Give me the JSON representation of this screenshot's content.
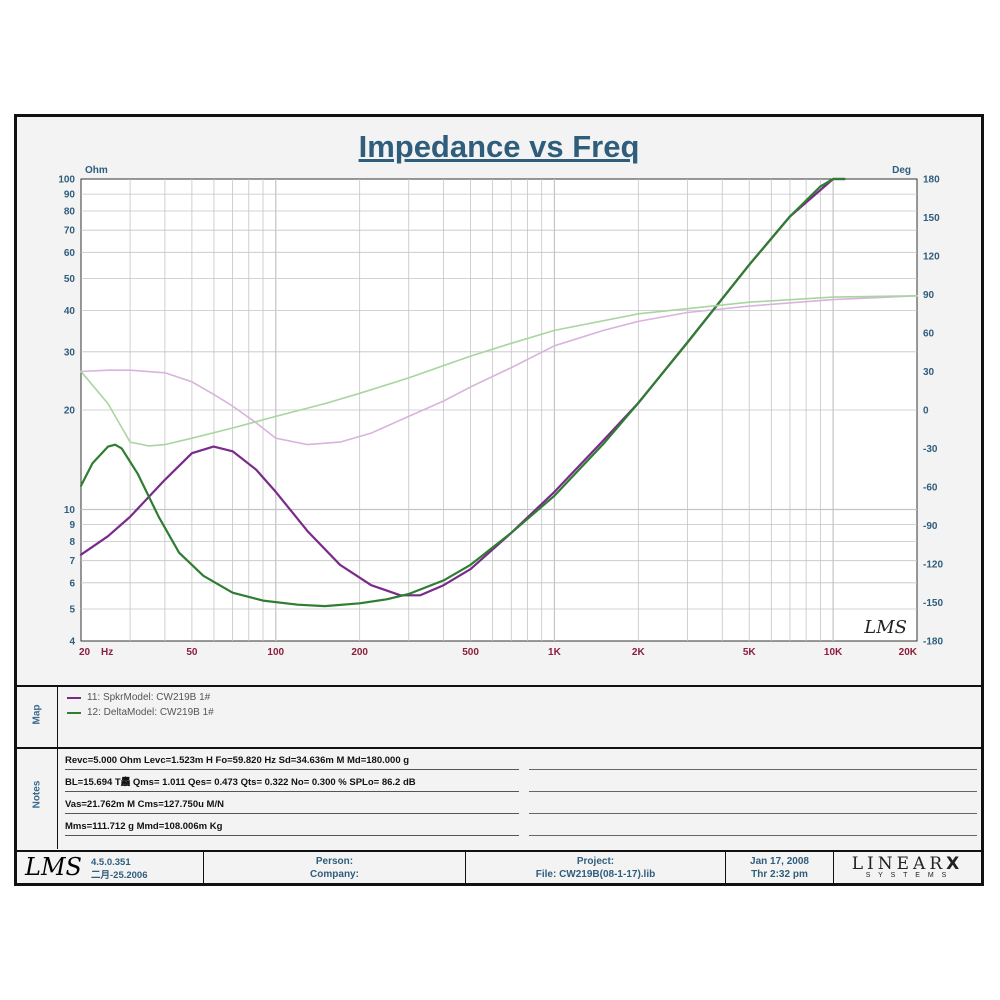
{
  "title": "Impedance vs Freq",
  "chart_data": {
    "type": "line",
    "title": "Impedance vs Freq",
    "xscale": "log",
    "yscale_left": "log",
    "xlim": [
      20,
      20000
    ],
    "ylim_left": [
      4,
      100
    ],
    "ylim_right": [
      -180,
      180
    ],
    "left_unit": "Ohm",
    "right_unit": "Deg",
    "x_ticks": [
      {
        "v": 20,
        "label": "20"
      },
      {
        "v": 50,
        "label": "50"
      },
      {
        "v": 100,
        "label": "100"
      },
      {
        "v": 200,
        "label": "200"
      },
      {
        "v": 500,
        "label": "500"
      },
      {
        "v": 1000,
        "label": "1K"
      },
      {
        "v": 2000,
        "label": "2K"
      },
      {
        "v": 5000,
        "label": "5K"
      },
      {
        "v": 10000,
        "label": "10K"
      },
      {
        "v": 20000,
        "label": "20K"
      }
    ],
    "x_unit_label": "Hz",
    "y_left_ticks": [
      4,
      5,
      6,
      7,
      8,
      9,
      10,
      20,
      30,
      40,
      50,
      60,
      70,
      80,
      90,
      100
    ],
    "y_right_ticks": [
      -180,
      -150,
      -120,
      -90,
      -60,
      -30,
      0,
      30,
      60,
      90,
      120,
      150,
      180
    ],
    "grid": true,
    "series": [
      {
        "name": "11: SpkrModel: CW219B  1#",
        "kind": "impedance",
        "axis": "left",
        "color": "#7a2a8a",
        "x": [
          20,
          25,
          30,
          40,
          50,
          59.82,
          70,
          85,
          100,
          130,
          170,
          220,
          280,
          330,
          400,
          500,
          700,
          1000,
          1500,
          2000,
          3000,
          5000,
          7000,
          10000,
          11000
        ],
        "y": [
          7.3,
          8.3,
          9.5,
          12.3,
          14.8,
          15.5,
          15.0,
          13.2,
          11.3,
          8.6,
          6.8,
          5.9,
          5.5,
          5.5,
          5.9,
          6.6,
          8.5,
          11.3,
          16.2,
          21,
          32,
          55,
          77,
          100,
          100
        ]
      },
      {
        "name": "",
        "kind": "phase",
        "axis": "right",
        "color": "#d8b4dc",
        "x": [
          20,
          25,
          30,
          40,
          50,
          60,
          70,
          85,
          100,
          130,
          170,
          220,
          300,
          400,
          500,
          700,
          1000,
          1500,
          2000,
          3000,
          5000,
          10000,
          20000
        ],
        "y": [
          30,
          31,
          31,
          29,
          22,
          12,
          3,
          -10,
          -22,
          -27,
          -25,
          -18,
          -5,
          7,
          18,
          33,
          50,
          62,
          69,
          76,
          81,
          86,
          89
        ]
      },
      {
        "name": "12: DeltaModel: CW219B  1#",
        "kind": "impedance",
        "axis": "left",
        "color": "#2e7d32",
        "x": [
          20,
          22,
          25,
          26.5,
          28,
          32,
          38,
          45,
          55,
          70,
          90,
          120,
          150,
          200,
          250,
          300,
          400,
          500,
          700,
          1000,
          1500,
          2000,
          3000,
          5000,
          7000,
          9000,
          10000,
          11000
        ],
        "y": [
          11.8,
          13.8,
          15.5,
          15.7,
          15.3,
          12.8,
          9.5,
          7.4,
          6.3,
          5.6,
          5.3,
          5.15,
          5.1,
          5.2,
          5.35,
          5.55,
          6.1,
          6.8,
          8.5,
          11.0,
          15.8,
          21,
          32,
          55,
          77,
          95,
          100,
          100
        ]
      },
      {
        "name": "",
        "kind": "phase",
        "axis": "right",
        "color": "#a8d5a0",
        "x": [
          20,
          25,
          30,
          35,
          40,
          50,
          70,
          100,
          150,
          200,
          300,
          500,
          700,
          1000,
          2000,
          5000,
          10000,
          20000
        ],
        "y": [
          30,
          5,
          -25,
          -28,
          -27,
          -22,
          -14,
          -5,
          5,
          13,
          25,
          42,
          52,
          62,
          75,
          84,
          88,
          89
        ]
      }
    ]
  },
  "map": {
    "label": "Map",
    "entries": [
      {
        "text": "11: SpkrModel: CW219B  1#",
        "color": "#7a2a8a"
      },
      {
        "text": "12: DeltaModel: CW219B  1#",
        "color": "#2e7d32"
      }
    ]
  },
  "notes": {
    "label": "Notes",
    "lines": [
      "Revc=5.000 Ohm  Levc=1.523m H  Fo=59.820 Hz  Sd=34.636m M   Md=180.000 g",
      "BL=15.694 T麤  Qms= 1.011  Qes= 0.473  Qts= 0.322  No= 0.300 %  SPLo= 86.2 dB",
      "Vas=21.762m M    Cms=127.750u M/N",
      "Mms=111.712 g  Mmd=108.006m Kg"
    ]
  },
  "footer": {
    "logo_text": "LMS",
    "version": "4.5.0.351",
    "version_date": "二月-25.2006",
    "person_label": "Person:",
    "company_label": "Company:",
    "project_label": "Project:",
    "file_label": "File: CW219B(08-1-17).lib",
    "date": "Jan 17, 2008",
    "time": "Thr  2:32 pm",
    "brand_main": "LINEAR",
    "brand_mark": "X",
    "brand_sub": "S Y S T E M S"
  },
  "watermark": "LMS",
  "colors": {
    "axis_text": "#2f5d7c",
    "x_tick_text": "#8a1e3c",
    "grid": "#c4c4c4"
  }
}
